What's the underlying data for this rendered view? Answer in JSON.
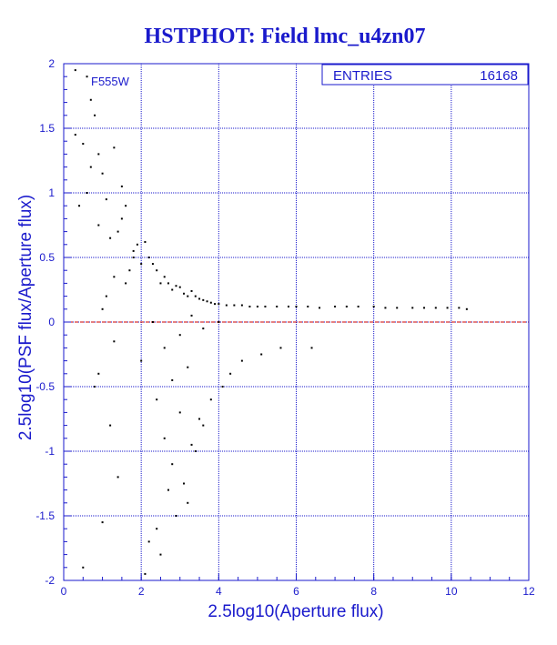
{
  "title": "HSTPHOT: Field lmc_u4zn07",
  "filter_label": "F555W",
  "stats_box": {
    "label": "ENTRIES",
    "value": "16168"
  },
  "colors": {
    "axis": "#1a1acc",
    "grid": "#1a1acc",
    "title": "#1a1acc",
    "points": "#000000",
    "reference_line": "#cc0000"
  },
  "chart_data": {
    "type": "scatter",
    "title": "HSTPHOT: Field lmc_u4zn07",
    "xlabel": "2.5log10(Aperture flux)",
    "ylabel": "2.5log10(PSF flux/Aperture flux)",
    "xlim": [
      0,
      12
    ],
    "ylim": [
      -2,
      2
    ],
    "x_ticks": [
      "0",
      "2",
      "4",
      "6",
      "8",
      "10",
      "12"
    ],
    "y_ticks": [
      "-2",
      "-1.5",
      "-1",
      "-0.5",
      "0",
      "0.5",
      "1",
      "1.5",
      "2"
    ],
    "grid": true,
    "reference_line_y": 0,
    "series": [
      {
        "entries": 16168,
        "marker": "dot",
        "x": [
          0.3,
          0.6,
          0.7,
          0.5,
          0.8,
          0.9,
          1.0,
          1.1,
          0.6,
          0.4,
          0.3,
          0.7,
          0.9,
          1.2,
          1.3,
          1.4,
          1.5,
          1.6,
          1.8,
          1.9,
          2.0,
          1.7,
          1.5,
          1.3,
          1.1,
          1.6,
          1.8,
          2.1,
          2.2,
          2.3,
          2.4,
          2.6,
          2.5,
          2.7,
          2.8,
          2.9,
          3.0,
          3.1,
          3.2,
          3.3,
          3.4,
          3.5,
          3.6,
          3.7,
          3.8,
          3.9,
          4.0,
          4.2,
          4.4,
          4.6,
          4.8,
          5.0,
          5.2,
          5.5,
          5.8,
          6.0,
          6.3,
          6.6,
          7.0,
          7.3,
          7.6,
          8.0,
          8.3,
          8.6,
          9.0,
          9.3,
          9.6,
          9.9,
          10.2,
          10.4,
          0.8,
          1.2,
          1.4,
          1.0,
          0.5,
          2.0,
          2.4,
          2.6,
          2.8,
          3.0,
          3.2,
          3.4,
          3.6,
          3.8,
          4.1,
          4.3,
          4.6,
          5.1,
          5.6,
          6.4,
          2.2,
          2.5,
          2.7,
          2.9,
          3.1,
          3.3,
          3.5,
          2.3,
          2.6,
          3.0,
          3.3,
          3.6,
          4.0,
          3.2,
          2.8,
          1.0,
          1.3,
          0.9,
          2.1,
          2.4
        ],
        "y": [
          1.95,
          1.9,
          1.72,
          1.38,
          1.6,
          1.3,
          1.15,
          0.95,
          1.0,
          0.9,
          1.45,
          1.2,
          0.75,
          0.65,
          1.35,
          0.7,
          1.05,
          0.9,
          0.55,
          0.6,
          0.45,
          0.4,
          0.8,
          0.35,
          0.2,
          0.3,
          0.5,
          0.62,
          0.5,
          0.45,
          0.4,
          0.35,
          0.3,
          0.3,
          0.25,
          0.28,
          0.27,
          0.22,
          0.2,
          0.24,
          0.2,
          0.18,
          0.17,
          0.16,
          0.15,
          0.14,
          0.14,
          0.13,
          0.13,
          0.13,
          0.12,
          0.12,
          0.12,
          0.12,
          0.12,
          0.12,
          0.12,
          0.11,
          0.12,
          0.12,
          0.12,
          0.12,
          0.11,
          0.11,
          0.11,
          0.11,
          0.11,
          0.11,
          0.11,
          0.1,
          -0.5,
          -0.8,
          -1.2,
          -1.55,
          -1.9,
          -0.3,
          -0.6,
          -0.9,
          -1.1,
          -0.7,
          -1.4,
          -1.0,
          -0.8,
          -0.6,
          -0.5,
          -0.4,
          -0.3,
          -0.25,
          -0.2,
          -0.2,
          -1.7,
          -1.8,
          -1.3,
          -1.5,
          -1.25,
          -0.95,
          -0.75,
          0.0,
          -0.2,
          -0.1,
          0.05,
          -0.05,
          0.0,
          -0.35,
          -0.45,
          0.1,
          -0.15,
          -0.4,
          -1.95,
          -1.6
        ]
      }
    ]
  }
}
